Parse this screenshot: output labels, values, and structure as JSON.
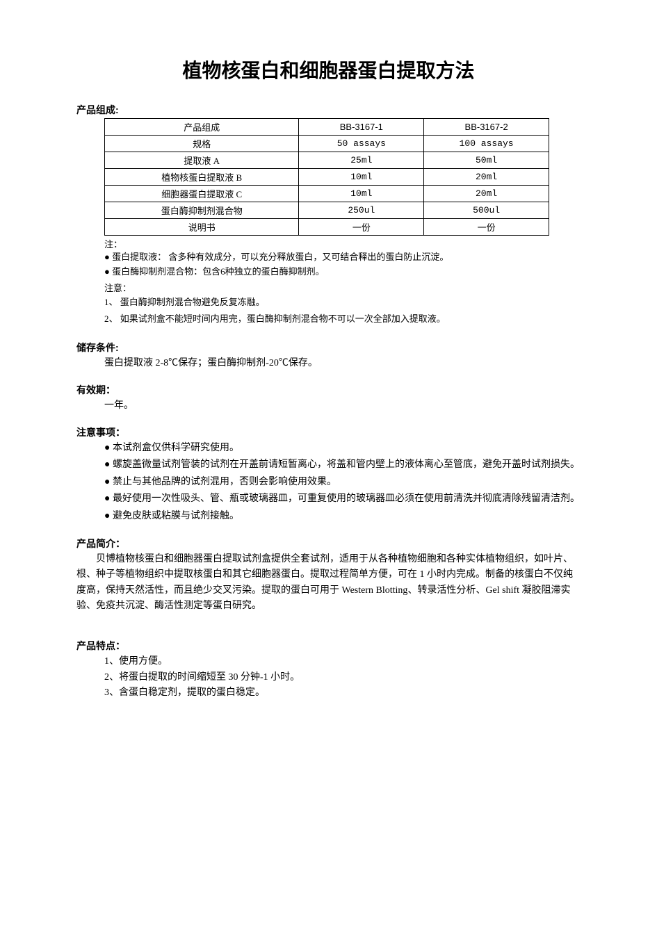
{
  "title": "植物核蛋白和细胞器蛋白提取方法",
  "sections": {
    "composition": {
      "heading": "产品组成:",
      "table": {
        "headers": [
          "产品组成",
          "BB-3167-1",
          "BB-3167-2"
        ],
        "rows": [
          [
            "规格",
            "50 assays",
            "100 assays"
          ],
          [
            "提取液 A",
            "25ml",
            "50ml"
          ],
          [
            "植物核蛋白提取液 B",
            "10ml",
            "20ml"
          ],
          [
            "细胞器蛋白提取液 C",
            "10ml",
            "20ml"
          ],
          [
            "蛋白酶抑制剂混合物",
            "250ul",
            "500ul"
          ],
          [
            "说明书",
            "一份",
            "一份"
          ]
        ]
      },
      "note_label": "注：",
      "notes": [
        "● 蛋白提取液：  含多种有效成分，可以充分释放蛋白，又可结合释出的蛋白防止沉淀。",
        "● 蛋白酶抑制剂混合物：包含6种独立的蛋白酶抑制剂。"
      ],
      "warn_label": "注意：",
      "warns": [
        "1、 蛋白酶抑制剂混合物避免反复冻融。",
        "2、 如果试剂盒不能短时间内用完，蛋白酶抑制剂混合物不可以一次全部加入提取液。"
      ]
    },
    "storage": {
      "heading": "储存条件:",
      "text": "蛋白提取液 2-8℃保存；蛋白酶抑制剂-20℃保存。"
    },
    "expiry": {
      "heading": "有效期：",
      "text": "一年。"
    },
    "precautions": {
      "heading": "注意事项：",
      "items": [
        "●  本试剂盒仅供科学研究使用。",
        "●  螺旋盖微量试剂管装的试剂在开盖前请短暂离心，将盖和管内壁上的液体离心至管底，避免开盖时试剂损失。",
        "●  禁止与其他品牌的试剂混用，否则会影响使用效果。",
        "●  最好使用一次性吸头、管、瓶或玻璃器皿，可重复使用的玻璃器皿必须在使用前清洗并彻底清除残留清洁剂。",
        "●  避免皮肤或粘膜与试剂接触。"
      ]
    },
    "intro": {
      "heading": "产品简介：",
      "text": "贝博植物核蛋白和细胞器蛋白提取试剂盒提供全套试剂，适用于从各种植物细胞和各种实体植物组织，如叶片、根、种子等植物组织中提取核蛋白和其它细胞器蛋白。提取过程简单方便，可在 1 小时内完成。制备的核蛋白不仅纯度高，保持天然活性，而且绝少交叉污染。提取的蛋白可用于 Western Blotting、转录活性分析、Gel shift 凝胶阻滞实验、免疫共沉淀、酶活性测定等蛋白研究。"
    },
    "features": {
      "heading": "产品特点：",
      "items": [
        "1、使用方便。",
        "2、将蛋白提取的时间缩短至 30 分钟-1 小时。",
        "3、含蛋白稳定剂，提取的蛋白稳定。"
      ]
    }
  }
}
